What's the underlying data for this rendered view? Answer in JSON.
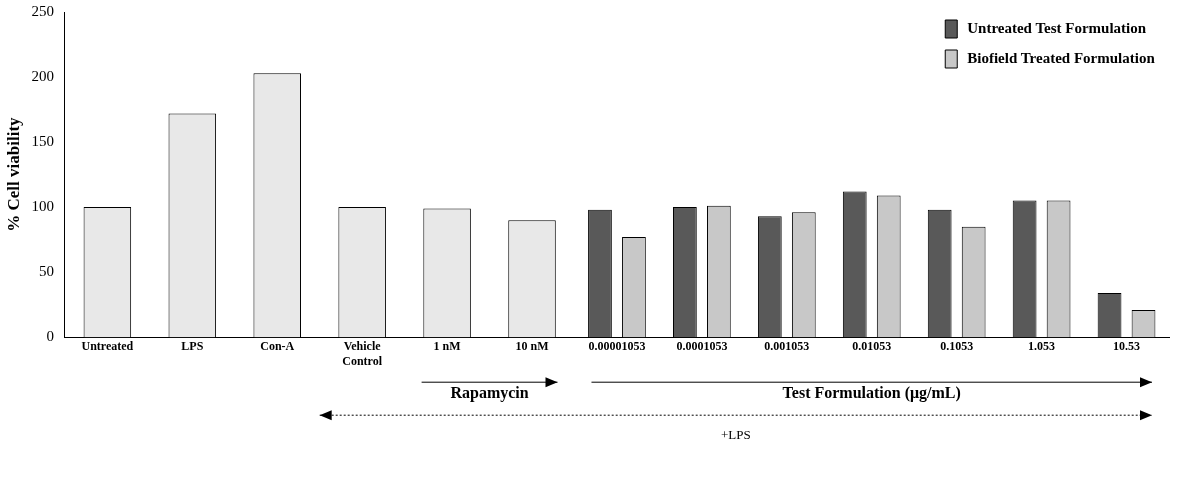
{
  "chart_data": {
    "type": "bar",
    "ylabel": "% Cell viability",
    "categories": [
      "Untreated",
      "LPS",
      "Con-A",
      "Vehicle Control",
      "1 nM",
      "10 nM",
      "0.00001053",
      "0.0001053",
      "0.001053",
      "0.01053",
      "0.1053",
      "1.053",
      "10.53"
    ],
    "series": [
      {
        "color": "#e8e8e8",
        "values": [
          100,
          172,
          203,
          100,
          99,
          90,
          null,
          null,
          null,
          null,
          null,
          null,
          null
        ]
      },
      {
        "name": "Untreated Test Formulation",
        "color": "#595959",
        "values": [
          null,
          null,
          null,
          null,
          null,
          null,
          98,
          100,
          93,
          112,
          98,
          105,
          34
        ]
      },
      {
        "name": "Biofield Treated Formulation",
        "color": "#c8c8c8",
        "values": [
          null,
          null,
          null,
          null,
          null,
          null,
          77,
          101,
          96,
          109,
          85,
          105,
          21
        ]
      }
    ],
    "ylim": [
      0,
      250
    ],
    "yticks": [
      0,
      50,
      100,
      150,
      200,
      250
    ],
    "grid": false,
    "legend": "top right",
    "annotations": [
      "Rapamycin",
      "Test Formulation (μg/mL)",
      "+LPS"
    ]
  }
}
